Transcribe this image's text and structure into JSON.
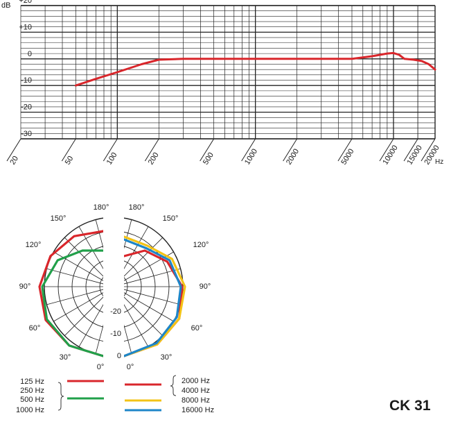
{
  "model": "CK 31",
  "frequency_response": {
    "unit_label": "dB",
    "x_unit": "Hz",
    "y_ticks": [
      "+20",
      "+10",
      "0",
      "-10",
      "-20",
      "-30"
    ],
    "x_ticks": [
      "20",
      "50",
      "100",
      "200",
      "500",
      "1000",
      "2000",
      "5000",
      "10000",
      "15000",
      "20000"
    ],
    "curve_color": "#d9262b"
  },
  "polar": {
    "angles_left": [
      "180°",
      "150°",
      "120°",
      "90°",
      "60°",
      "30°",
      "0°"
    ],
    "angles_right": [
      "180°",
      "150°",
      "120°",
      "90°",
      "60°",
      "30°",
      "0°"
    ],
    "db_rings": [
      "-20",
      "-10",
      "0"
    ]
  },
  "legend": {
    "left_labels": [
      "125 Hz",
      "250 Hz",
      "500 Hz",
      "1000 Hz"
    ],
    "right_labels": [
      "2000 Hz",
      "4000 Hz",
      "8000 Hz",
      "16000 Hz"
    ],
    "colors": {
      "red": "#d9262b",
      "green": "#21a04a",
      "yellow": "#f3c316",
      "blue": "#1e86c8"
    }
  },
  "chart_data": [
    {
      "type": "line",
      "x_scale": "log",
      "xlabel": "Hz",
      "ylabel": "dB",
      "xlim": [
        20,
        20000
      ],
      "ylim": [
        -30,
        20
      ],
      "x_ticks": [
        20,
        50,
        100,
        200,
        500,
        1000,
        2000,
        5000,
        10000,
        15000,
        20000
      ],
      "y_ticks": [
        20,
        10,
        0,
        -10,
        -20,
        -30
      ],
      "grid": true,
      "series": [
        {
          "x": [
            50,
            70,
            100,
            150,
            200,
            300,
            500,
            1000,
            2000,
            5000,
            7000,
            9000,
            10000,
            11000,
            12000,
            14000,
            16000,
            18000,
            20000
          ],
          "y": [
            -10,
            -7.5,
            -5,
            -2,
            -0.3,
            0,
            0,
            0,
            0,
            0,
            1,
            2,
            2.2,
            1.5,
            0,
            -0.3,
            -0.8,
            -2,
            -4
          ]
        }
      ]
    },
    {
      "type": "polar",
      "angle_unit": "degrees",
      "r_ticks": [
        -20,
        -10,
        0
      ],
      "series": [
        {
          "name": "125 Hz",
          "color": "#d9262b",
          "angles": [
            0,
            30,
            60,
            90,
            120,
            150,
            180
          ],
          "db": [
            0,
            -0.5,
            -1,
            -2,
            -3,
            -4,
            -5
          ]
        },
        {
          "name": "250 Hz / 500 Hz / 1000 Hz",
          "color": "#21a04a",
          "angles": [
            0,
            30,
            60,
            90,
            120,
            150,
            180
          ],
          "db": [
            0,
            -0.5,
            -1.5,
            -3,
            -6,
            -10,
            -12
          ]
        },
        {
          "name": "2000 Hz / 4000 Hz",
          "color": "#d9262b",
          "angles": [
            0,
            30,
            60,
            90,
            120,
            150,
            180
          ],
          "db": [
            0,
            -1,
            -2,
            -4,
            -7,
            -10,
            -14
          ]
        },
        {
          "name": "8000 Hz",
          "color": "#f3c316",
          "angles": [
            0,
            30,
            60,
            90,
            120,
            150,
            180
          ],
          "db": [
            0,
            -1,
            -2,
            -3,
            -5,
            -8,
            -7
          ]
        },
        {
          "name": "16000 Hz",
          "color": "#1e86c8",
          "angles": [
            0,
            30,
            60,
            90,
            120,
            150,
            180
          ],
          "db": [
            0,
            -1.5,
            -3,
            -4.5,
            -6,
            -9,
            -8
          ]
        }
      ]
    }
  ]
}
